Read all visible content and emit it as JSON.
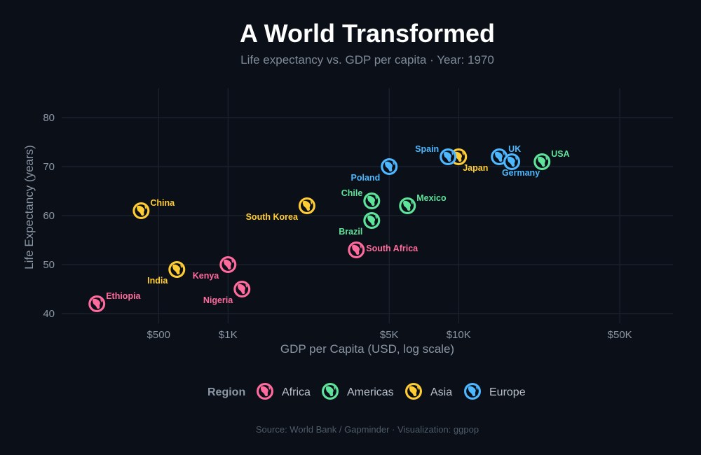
{
  "chart_data": {
    "type": "scatter",
    "title": "A World Transformed",
    "subtitle": "Life expectancy vs. GDP per capita",
    "year_label": "Year: 1970",
    "xlabel": "GDP per Capita (USD, log scale)",
    "ylabel": "Life Expectancy (years)",
    "x_scale": "log",
    "xlim": [
      190,
      85000
    ],
    "ylim": [
      38,
      86
    ],
    "x_ticks": [
      {
        "value": 500,
        "label": "$500"
      },
      {
        "value": 1000,
        "label": "$1K"
      },
      {
        "value": 5000,
        "label": "$5K"
      },
      {
        "value": 10000,
        "label": "$10K"
      },
      {
        "value": 50000,
        "label": "$50K"
      }
    ],
    "y_ticks": [
      {
        "value": 40,
        "label": "40"
      },
      {
        "value": 50,
        "label": "50"
      },
      {
        "value": 60,
        "label": "60"
      },
      {
        "value": 70,
        "label": "70"
      },
      {
        "value": 80,
        "label": "80"
      }
    ],
    "legend_title": "Region",
    "regions": [
      {
        "name": "Africa",
        "color": "#ff6b9d",
        "icon": "globe-africa-icon"
      },
      {
        "name": "Americas",
        "color": "#5ee39b",
        "icon": "globe-americas-icon"
      },
      {
        "name": "Asia",
        "color": "#ffcc33",
        "icon": "globe-asia-icon"
      },
      {
        "name": "Europe",
        "color": "#4db8ff",
        "icon": "globe-europe-icon"
      }
    ],
    "points": [
      {
        "country": "Ethiopia",
        "region": "Africa",
        "gdp": 270,
        "life": 42,
        "label_side": "right-up"
      },
      {
        "country": "Kenya",
        "region": "Africa",
        "gdp": 1000,
        "life": 50,
        "label_side": "left-down"
      },
      {
        "country": "Nigeria",
        "region": "Africa",
        "gdp": 1150,
        "life": 45,
        "label_side": "left-down"
      },
      {
        "country": "South Africa",
        "region": "Africa",
        "gdp": 3600,
        "life": 53,
        "label_side": "right"
      },
      {
        "country": "Chile",
        "region": "Americas",
        "gdp": 4200,
        "life": 63,
        "label_side": "left-up"
      },
      {
        "country": "Brazil",
        "region": "Americas",
        "gdp": 4200,
        "life": 59,
        "label_side": "left-down"
      },
      {
        "country": "Mexico",
        "region": "Americas",
        "gdp": 6000,
        "life": 62,
        "label_side": "right-up"
      },
      {
        "country": "USA",
        "region": "Americas",
        "gdp": 23000,
        "life": 71,
        "label_side": "right-up"
      },
      {
        "country": "China",
        "region": "Asia",
        "gdp": 420,
        "life": 61,
        "label_side": "right-up"
      },
      {
        "country": "India",
        "region": "Asia",
        "gdp": 600,
        "life": 49,
        "label_side": "left-down"
      },
      {
        "country": "South Korea",
        "region": "Asia",
        "gdp": 2200,
        "life": 62,
        "label_side": "left-down"
      },
      {
        "country": "Japan",
        "region": "Asia",
        "gdp": 10000,
        "life": 72,
        "label_side": "right-down"
      },
      {
        "country": "Poland",
        "region": "Europe",
        "gdp": 5000,
        "life": 70,
        "label_side": "left-down"
      },
      {
        "country": "Spain",
        "region": "Europe",
        "gdp": 9000,
        "life": 72,
        "label_side": "left-up"
      },
      {
        "country": "UK",
        "region": "Europe",
        "gdp": 15000,
        "life": 72,
        "label_side": "right-up"
      },
      {
        "country": "Germany",
        "region": "Europe",
        "gdp": 17000,
        "life": 71,
        "label_side": "below"
      }
    ],
    "caption": "Source: World Bank / Gapminder  ·  Visualization: ggpop"
  },
  "colors": {
    "background": "#0b0f17",
    "grid": "#1c2431"
  }
}
